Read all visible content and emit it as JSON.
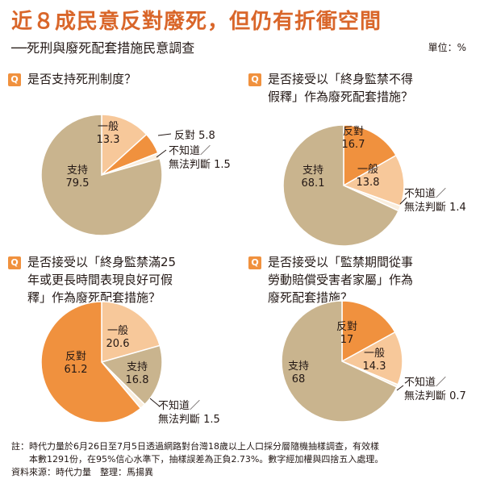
{
  "header": {
    "title": "近８成民意反對廢死，但仍有折衝空間",
    "subtitle": "──死刑與廢死配套措施民意調查",
    "unit": "單位：%"
  },
  "q_badge": "Q",
  "colors": {
    "support": "#c9b48e",
    "oppose": "#f0913e",
    "general": "#f7c89a",
    "unknown": "#faeedd",
    "title": "#d9662a",
    "badge": "#f0913e"
  },
  "chart_data": [
    {
      "type": "pie",
      "question_lines": [
        "是否支持死刑制度？"
      ],
      "slices": [
        {
          "label": "一般",
          "value": 13.3,
          "color": "#f7c89a"
        },
        {
          "label": "反對",
          "value": 5.8,
          "color": "#f0913e"
        },
        {
          "label": "不知道／無法判斷",
          "value": 1.5,
          "color": "#faeedd"
        },
        {
          "label": "支持",
          "value": 79.5,
          "color": "#c9b48e"
        }
      ]
    },
    {
      "type": "pie",
      "question_lines": [
        "是否接受以「終身監禁不得",
        "假釋」作為廢死配套措施？"
      ],
      "slices": [
        {
          "label": "反對",
          "value": 16.7,
          "color": "#f0913e"
        },
        {
          "label": "一般",
          "value": 13.8,
          "color": "#f7c89a"
        },
        {
          "label": "不知道／無法判斷",
          "value": 1.4,
          "color": "#faeedd"
        },
        {
          "label": "支持",
          "value": 68.1,
          "color": "#c9b48e"
        }
      ]
    },
    {
      "type": "pie",
      "question_lines": [
        "是否接受以「終身監禁滿25",
        "年或更長時間表現良好可假",
        "釋」作為廢死配套措施？"
      ],
      "slices": [
        {
          "label": "一般",
          "value": 20.6,
          "color": "#f7c89a"
        },
        {
          "label": "支持",
          "value": 16.8,
          "color": "#c9b48e"
        },
        {
          "label": "不知道／無法判斷",
          "value": 1.5,
          "color": "#faeedd"
        },
        {
          "label": "反對",
          "value": 61.2,
          "color": "#f0913e"
        }
      ]
    },
    {
      "type": "pie",
      "question_lines": [
        "是否接受以「監禁期間從事",
        "勞動賠償受害者家屬」作為",
        "廢死配套措施？"
      ],
      "slices": [
        {
          "label": "反對",
          "value": 17,
          "color": "#f0913e"
        },
        {
          "label": "一般",
          "value": 14.3,
          "color": "#f7c89a"
        },
        {
          "label": "不知道／無法判斷",
          "value": 0.7,
          "color": "#faeedd"
        },
        {
          "label": "支持",
          "value": 68,
          "color": "#c9b48e"
        }
      ]
    }
  ],
  "footer": {
    "note_line1": "註：時代力量於6月26日至7月5日透過網路對台灣18歲以上人口採分層隨機抽樣調查，有效樣",
    "note_line2": "　　本數1291份，在95%信心水準下，抽樣誤差為正負2.73%。數字經加權與四捨五入處理。",
    "source": "資料來源：時代力量　整理：馬揚異"
  }
}
